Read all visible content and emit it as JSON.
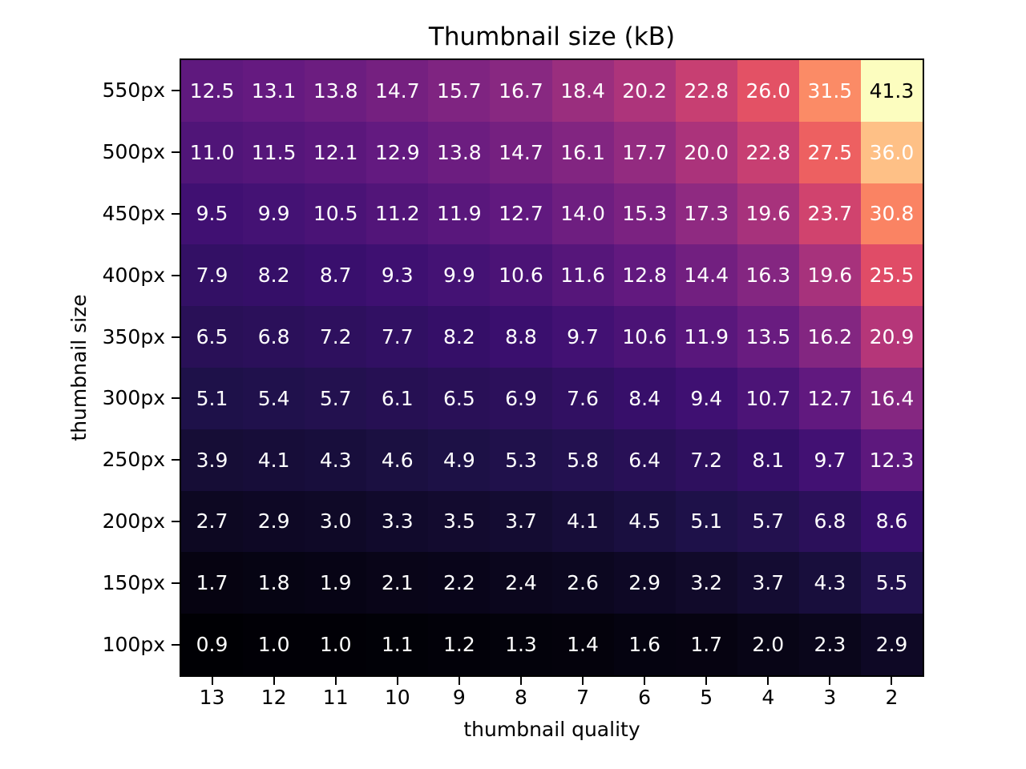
{
  "chart_data": {
    "type": "heatmap",
    "title": "Thumbnail size (kB)",
    "xlabel": "thumbnail quality",
    "ylabel": "thumbnail size",
    "x_categories": [
      "13",
      "12",
      "11",
      "10",
      "9",
      "8",
      "7",
      "6",
      "5",
      "4",
      "3",
      "2"
    ],
    "y_categories": [
      "550px",
      "500px",
      "450px",
      "400px",
      "350px",
      "300px",
      "250px",
      "200px",
      "150px",
      "100px"
    ],
    "values": [
      [
        12.5,
        13.1,
        13.8,
        14.7,
        15.7,
        16.7,
        18.4,
        20.2,
        22.8,
        26.0,
        31.5,
        41.3
      ],
      [
        11.0,
        11.5,
        12.1,
        12.9,
        13.8,
        14.7,
        16.1,
        17.7,
        20.0,
        22.8,
        27.5,
        36.0
      ],
      [
        9.5,
        9.9,
        10.5,
        11.2,
        11.9,
        12.7,
        14.0,
        15.3,
        17.3,
        19.6,
        23.7,
        30.8
      ],
      [
        7.9,
        8.2,
        8.7,
        9.3,
        9.9,
        10.6,
        11.6,
        12.8,
        14.4,
        16.3,
        19.6,
        25.5
      ],
      [
        6.5,
        6.8,
        7.2,
        7.7,
        8.2,
        8.8,
        9.7,
        10.6,
        11.9,
        13.5,
        16.2,
        20.9
      ],
      [
        5.1,
        5.4,
        5.7,
        6.1,
        6.5,
        6.9,
        7.6,
        8.4,
        9.4,
        10.7,
        12.7,
        16.4
      ],
      [
        3.9,
        4.1,
        4.3,
        4.6,
        4.9,
        5.3,
        5.8,
        6.4,
        7.2,
        8.1,
        9.7,
        12.3
      ],
      [
        2.7,
        2.9,
        3.0,
        3.3,
        3.5,
        3.7,
        4.1,
        4.5,
        5.1,
        5.7,
        6.8,
        8.6
      ],
      [
        1.7,
        1.8,
        1.9,
        2.1,
        2.2,
        2.4,
        2.6,
        2.9,
        3.2,
        3.7,
        4.3,
        5.5
      ],
      [
        0.9,
        1.0,
        1.0,
        1.1,
        1.2,
        1.3,
        1.4,
        1.6,
        1.7,
        2.0,
        2.3,
        2.9
      ]
    ],
    "value_decimals": 1,
    "vmin": 0.9,
    "vmax": 41.3,
    "colormap": {
      "name": "magma",
      "anchors": [
        "#000004",
        "#1d1147",
        "#3b0f70",
        "#641a80",
        "#8c2981",
        "#b73779",
        "#de4968",
        "#f7705c",
        "#fe9f6d",
        "#fecf92",
        "#fcfdbf"
      ]
    },
    "annotation_colors": {
      "light_text": "#ffffff",
      "dark_text": "#000000",
      "dark_text_threshold": 0.93
    },
    "frame_color": "#000000",
    "background": "#ffffff",
    "legend": "none",
    "grid": "off"
  }
}
